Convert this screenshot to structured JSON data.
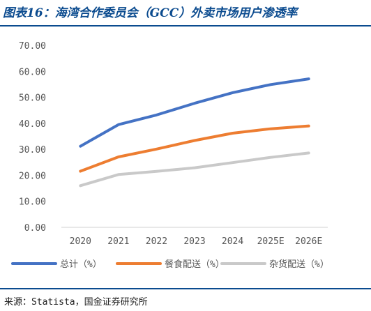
{
  "header": {
    "title": "图表16：海湾合作委员会（GCC）外卖市场用户渗透率"
  },
  "footer": {
    "source": "来源：Statista，国金证券研究所"
  },
  "chart_data": {
    "type": "line",
    "title": "图表16：海湾合作委员会（GCC）外卖市场用户渗透率",
    "xlabel": "",
    "ylabel": "",
    "categories": [
      "2020",
      "2021",
      "2022",
      "2023",
      "2024",
      "2025E",
      "2026E"
    ],
    "y_ticks": [
      "0.00",
      "10.00",
      "20.00",
      "30.00",
      "40.00",
      "50.00",
      "60.00",
      "70.00"
    ],
    "ylim": [
      0,
      70
    ],
    "grid": false,
    "legend_position": "bottom",
    "series": [
      {
        "name": "总计（%）",
        "color": "#4472c4",
        "values": [
          31.2,
          39.5,
          43.2,
          47.7,
          51.8,
          54.9,
          57.1
        ]
      },
      {
        "name": "餐食配送（%）",
        "color": "#ed7d31",
        "values": [
          21.6,
          27.1,
          30.1,
          33.4,
          36.2,
          37.9,
          39.0
        ]
      },
      {
        "name": "杂货配送（%）",
        "color": "#c9c9c9",
        "values": [
          16.0,
          20.3,
          21.5,
          22.9,
          24.9,
          26.9,
          28.6
        ]
      }
    ]
  }
}
